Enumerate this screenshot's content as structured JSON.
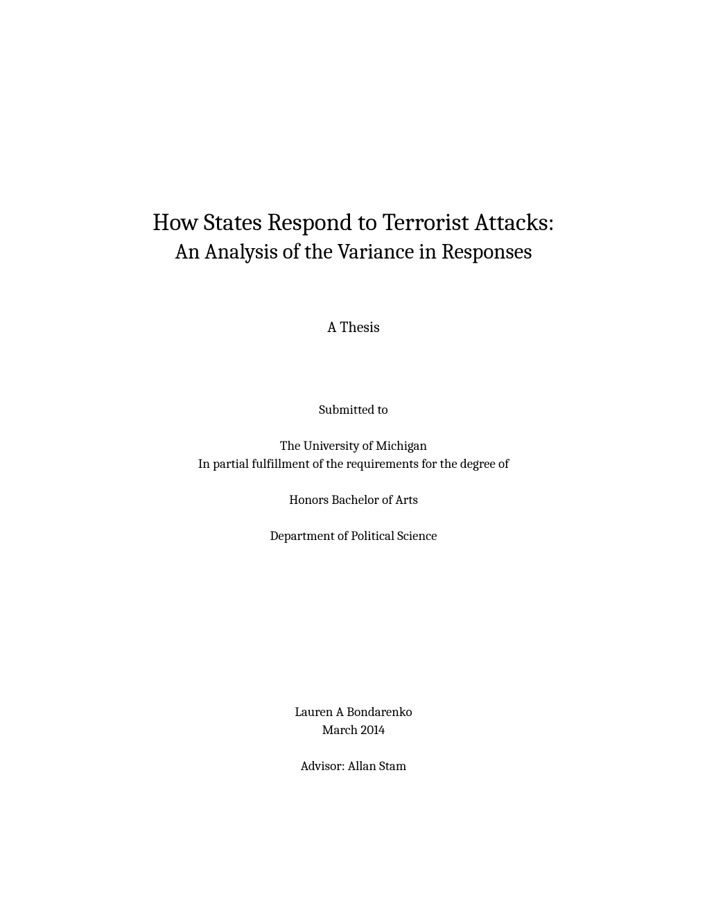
{
  "title": {
    "line1": "How States Respond to Terrorist Attacks:",
    "line2": "An Analysis of the Variance in Responses"
  },
  "thesis_label": "A Thesis",
  "submission": {
    "submitted_to": "Submitted to",
    "university": "The University of Michigan",
    "fulfillment": "In partial fulfillment of the requirements for the degree of",
    "degree": "Honors Bachelor of Arts",
    "department": "Department of Political Science"
  },
  "author": {
    "name": "Lauren A Bondarenko",
    "date": "March 2014"
  },
  "advisor": "Advisor: Allan Stam",
  "styling": {
    "background_color": "#ffffff",
    "text_color": "#000000",
    "title_fontsize": 35,
    "subtitle_fontsize": 31,
    "thesis_label_fontsize": 22,
    "body_fontsize": 19,
    "font_family": "Cambria, Georgia, Times New Roman, serif"
  }
}
